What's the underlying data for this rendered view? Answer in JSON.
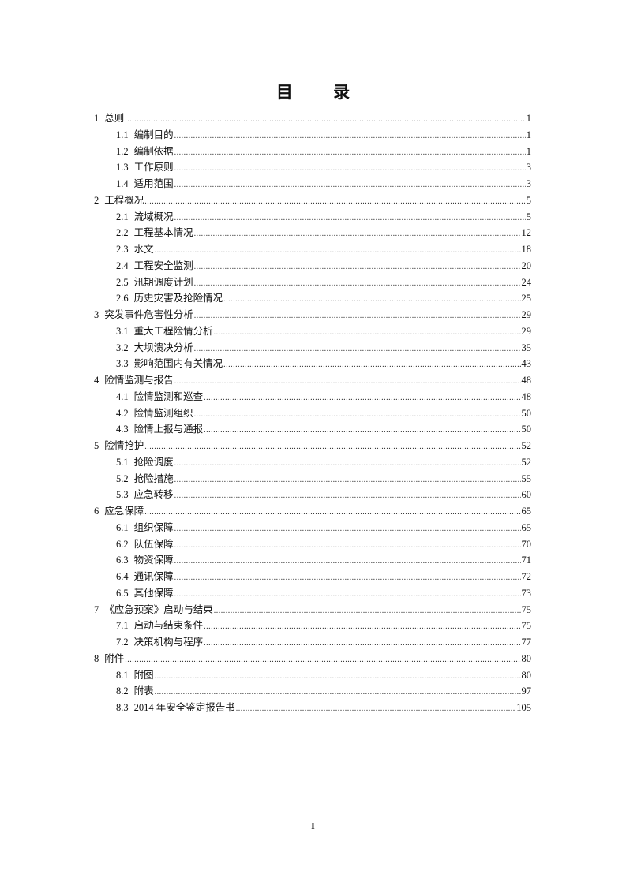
{
  "title": "目  录",
  "entries": [
    {
      "level": 1,
      "num": "1",
      "label": "总则",
      "page": "1"
    },
    {
      "level": 2,
      "num": "1.1",
      "label": "编制目的",
      "page": "1"
    },
    {
      "level": 2,
      "num": "1.2",
      "label": "编制依据",
      "page": "1"
    },
    {
      "level": 2,
      "num": "1.3",
      "label": "工作原则",
      "page": "3"
    },
    {
      "level": 2,
      "num": "1.4",
      "label": "适用范围",
      "page": "3"
    },
    {
      "level": 1,
      "num": "2",
      "label": "工程概况",
      "page": "5"
    },
    {
      "level": 2,
      "num": "2.1",
      "label": "流域概况",
      "page": "5"
    },
    {
      "level": 2,
      "num": "2.2",
      "label": "工程基本情况",
      "page": "12"
    },
    {
      "level": 2,
      "num": "2.3",
      "label": "水文",
      "page": "18"
    },
    {
      "level": 2,
      "num": "2.4",
      "label": "工程安全监测",
      "page": "20"
    },
    {
      "level": 2,
      "num": "2.5",
      "label": "汛期调度计划",
      "page": "24"
    },
    {
      "level": 2,
      "num": "2.6",
      "label": "历史灾害及抢险情况",
      "page": "25"
    },
    {
      "level": 1,
      "num": "3",
      "label": "突发事件危害性分析",
      "page": "29"
    },
    {
      "level": 2,
      "num": "3.1",
      "label": "重大工程险情分析",
      "page": "29"
    },
    {
      "level": 2,
      "num": "3.2",
      "label": "大坝溃决分析",
      "page": "35"
    },
    {
      "level": 2,
      "num": "3.3",
      "label": "影响范围内有关情况",
      "page": "43"
    },
    {
      "level": 1,
      "num": "4",
      "label": "险情监测与报告",
      "page": "48"
    },
    {
      "level": 2,
      "num": "4.1",
      "label": "险情监测和巡查",
      "page": "48"
    },
    {
      "level": 2,
      "num": "4.2",
      "label": "险情监测组织",
      "page": "50"
    },
    {
      "level": 2,
      "num": "4.3",
      "label": "险情上报与通报",
      "page": "50"
    },
    {
      "level": 1,
      "num": "5",
      "label": "险情抢护",
      "page": "52"
    },
    {
      "level": 2,
      "num": "5.1",
      "label": "抢险调度",
      "page": "52"
    },
    {
      "level": 2,
      "num": "5.2",
      "label": "抢险措施",
      "page": "55"
    },
    {
      "level": 2,
      "num": "5.3",
      "label": "应急转移",
      "page": "60"
    },
    {
      "level": 1,
      "num": "6",
      "label": "应急保障",
      "page": "65"
    },
    {
      "level": 2,
      "num": "6.1",
      "label": "组织保障",
      "page": "65"
    },
    {
      "level": 2,
      "num": "6.2",
      "label": "队伍保障",
      "page": "70"
    },
    {
      "level": 2,
      "num": "6.3",
      "label": "物资保障",
      "page": "71"
    },
    {
      "level": 2,
      "num": "6.4",
      "label": "通讯保障",
      "page": "72"
    },
    {
      "level": 2,
      "num": "6.5",
      "label": "其他保障",
      "page": "73"
    },
    {
      "level": 1,
      "num": "7",
      "label": "《应急预案》启动与结束",
      "page": "75"
    },
    {
      "level": 2,
      "num": "7.1",
      "label": "启动与结束条件",
      "page": "75"
    },
    {
      "level": 2,
      "num": "7.2",
      "label": "决策机构与程序",
      "page": "77"
    },
    {
      "level": 1,
      "num": "8",
      "label": "附件",
      "page": "80"
    },
    {
      "level": 2,
      "num": "8.1",
      "label": "附图",
      "page": "80"
    },
    {
      "level": 2,
      "num": "8.2",
      "label": "附表",
      "page": "97"
    },
    {
      "level": 2,
      "num": "8.3",
      "label": "2014 年安全鉴定报告书",
      "page": "105"
    }
  ],
  "footer": {
    "page_number": "I"
  }
}
